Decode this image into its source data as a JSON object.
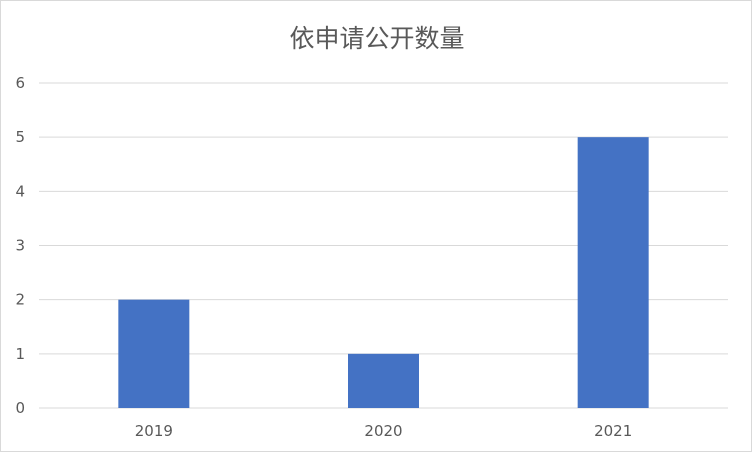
{
  "chart_data": {
    "type": "bar",
    "title": "依申请公开数量",
    "categories": [
      "2019",
      "2020",
      "2021"
    ],
    "values": [
      2,
      1,
      5
    ],
    "xlabel": "",
    "ylabel": "",
    "ylim": [
      0,
      6
    ],
    "yticks": [
      0,
      1,
      2,
      3,
      4,
      5,
      6
    ],
    "grid": true,
    "legend": "none",
    "colors": {
      "bar": "#4472C4",
      "grid": "#d9d9d9",
      "text": "#595959"
    }
  }
}
